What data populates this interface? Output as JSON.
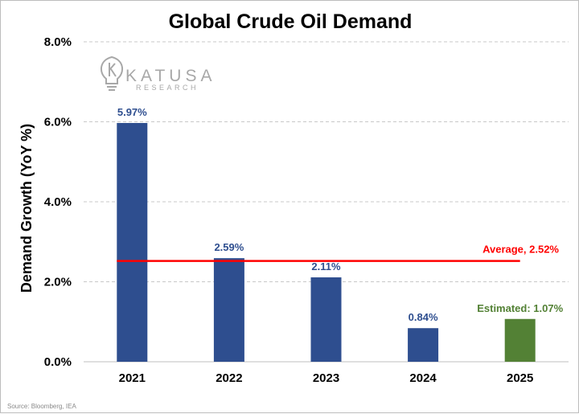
{
  "logo": {
    "name": "KATUSA",
    "subtitle": "RESEARCH",
    "icon": "lightbulb-k-icon",
    "color": "#a8a8a8"
  },
  "source": "Source: Bloomberg, IEA",
  "chart_data": {
    "type": "bar",
    "title": "Global Crude Oil Demand",
    "xlabel": "",
    "ylabel": "Demand Growth (YoY %)",
    "ylim": [
      0,
      8
    ],
    "yticks": [
      0,
      2,
      4,
      6,
      8
    ],
    "ytick_labels": [
      "0.0%",
      "2.0%",
      "4.0%",
      "6.0%",
      "8.0%"
    ],
    "categories": [
      "2021",
      "2022",
      "2023",
      "2024",
      "2025"
    ],
    "values": [
      5.97,
      2.59,
      2.11,
      0.84,
      1.07
    ],
    "data_labels": [
      "5.97%",
      "2.59%",
      "2.11%",
      "0.84%",
      "Estimated: 1.07%"
    ],
    "bar_colors": [
      "#2e4e8f",
      "#2e4e8f",
      "#2e4e8f",
      "#2e4e8f",
      "#538135"
    ],
    "label_colors": [
      "#2e4e8f",
      "#2e4e8f",
      "#2e4e8f",
      "#2e4e8f",
      "#538135"
    ],
    "grid": true,
    "reference_line": {
      "value": 2.52,
      "label": "Average, 2.52%",
      "color": "#ff0000"
    }
  }
}
